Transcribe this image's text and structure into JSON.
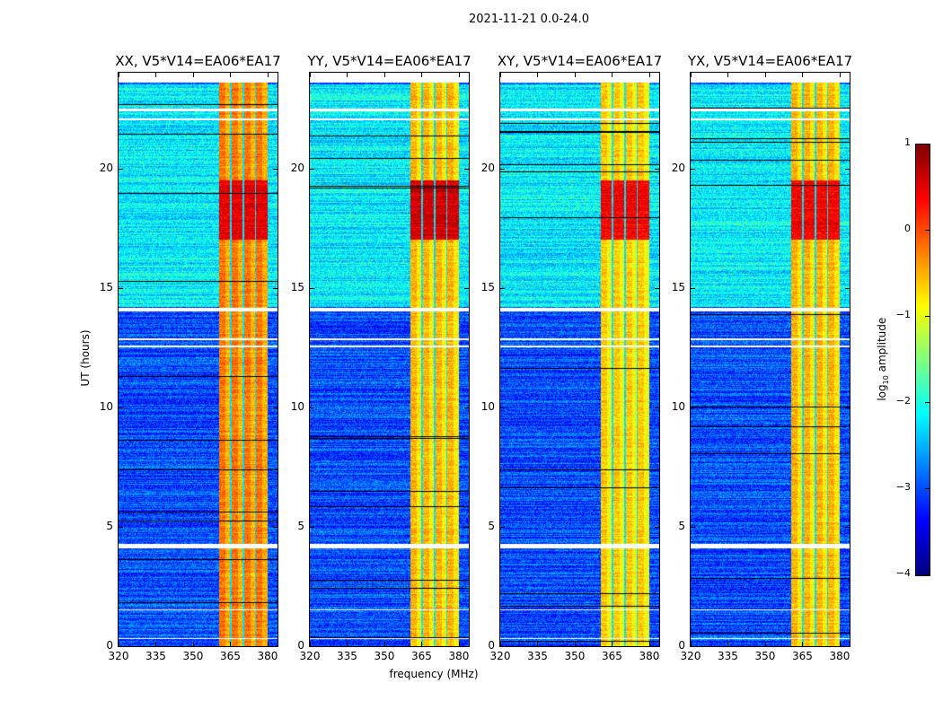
{
  "chart_data": {
    "type": "heatmap",
    "title": "2021-11-21 0.0-24.0",
    "xlabel": "frequency (MHz)",
    "ylabel": "UT (hours)",
    "xlim": [
      320,
      384
    ],
    "ylim": [
      0,
      24
    ],
    "xticks": [
      320,
      335,
      350,
      365,
      380
    ],
    "yticks": [
      0,
      5,
      10,
      15,
      20
    ],
    "panels": [
      {
        "title": "XX, V5*V14=EA06*EA17",
        "band_level": -0.5,
        "peak_level": 0.5
      },
      {
        "title": "YY, V5*V14=EA06*EA17",
        "band_level": -0.8,
        "peak_level": 0.6
      },
      {
        "title": "XY, V5*V14=EA06*EA17",
        "band_level": -0.9,
        "peak_level": 0.4
      },
      {
        "title": "YX, V5*V14=EA06*EA17",
        "band_level": -0.8,
        "peak_level": 0.4
      }
    ],
    "rfi_band_mhz": [
      360.5,
      380
    ],
    "rfi_peak_hours": [
      17,
      19.5
    ],
    "active_background_hours": [
      14.2,
      23.5
    ],
    "background_level_quiet": -3.0,
    "background_level_active": -2.2,
    "flagged_hours": [
      [
        23.6,
        24
      ],
      [
        22.4,
        22.5
      ],
      [
        22.0,
        22.1
      ],
      [
        14.0,
        14.15
      ],
      [
        12.8,
        12.9
      ],
      [
        12.5,
        12.6
      ],
      [
        4.1,
        4.3
      ],
      [
        1.5,
        1.55
      ],
      [
        0.3,
        0.35
      ]
    ],
    "colorbar": {
      "label": "log10 amplitude",
      "range": [
        -4,
        1
      ],
      "ticks": [
        1,
        0,
        -1,
        -2,
        -3,
        -4
      ],
      "colormap": "jet"
    }
  },
  "tick_labels": {
    "x": [
      "320",
      "335",
      "350",
      "365",
      "380"
    ],
    "y": [
      "0",
      "5",
      "10",
      "15",
      "20"
    ],
    "cbar": [
      "1",
      "0",
      "−1",
      "−2",
      "−3",
      "−4"
    ]
  },
  "cbar_label_main": "log",
  "cbar_label_sub": "10",
  "cbar_label_rest": " amplitude"
}
